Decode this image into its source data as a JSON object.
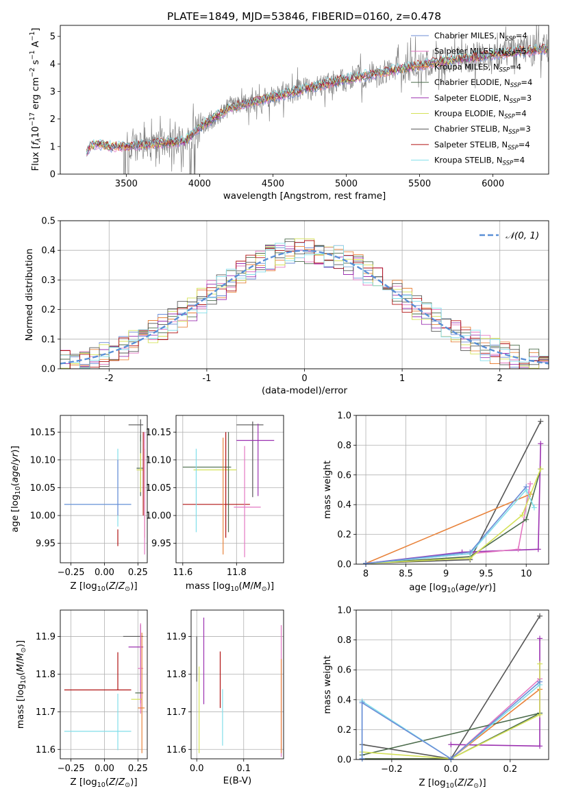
{
  "title": "PLATE=1849, MJD=53846, FIBERID=0160, z=0.478",
  "colors": {
    "Chabrier MILES": "#6b8bd6",
    "Salpeter MILES": "#e377c2",
    "Kroupa MILES": "#e8823a",
    "Chabrier ELODIE": "#4b6b4b",
    "Salpeter ELODIE": "#9b30b0",
    "Kroupa ELODIE": "#d4e157",
    "Chabrier STELIB": "#555555",
    "Salpeter STELIB": "#b01010",
    "Kroupa STELIB": "#80deea",
    "gauss": "#5a8fd6",
    "data": "#808080"
  },
  "legend_entries": [
    {
      "key": "Chabrier MILES",
      "pre": "Chabrier MILES, N",
      "n": "4"
    },
    {
      "key": "Salpeter MILES",
      "pre": "Salpeter MILES, N",
      "n": "5"
    },
    {
      "key": "Kroupa MILES",
      "pre": "Kroupa MILES, N",
      "n": "4"
    },
    {
      "key": "Chabrier ELODIE",
      "pre": "Chabrier ELODIE, N",
      "n": "4"
    },
    {
      "key": "Salpeter ELODIE",
      "pre": "Salpeter ELODIE, N",
      "n": "3"
    },
    {
      "key": "Kroupa ELODIE",
      "pre": "Kroupa ELODIE, N",
      "n": "4"
    },
    {
      "key": "Chabrier STELIB",
      "pre": "Chabrier STELIB, N",
      "n": "3"
    },
    {
      "key": "Salpeter STELIB",
      "pre": "Salpeter STELIB, N",
      "n": "4"
    },
    {
      "key": "Kroupa STELIB",
      "pre": "Kroupa STELIB, N",
      "n": "4"
    }
  ],
  "chart_data": [
    {
      "id": "spectrum",
      "type": "line",
      "xlabel": "wavelength [Angstrom, rest frame]",
      "ylabel": "Flux [f_λ 10^-17 erg cm^-2 s^-1 A^-1]",
      "xlim": [
        3050,
        6380
      ],
      "ylim": [
        0,
        5.4
      ],
      "xticks": [
        3500,
        4000,
        4500,
        5000,
        5500,
        6000
      ],
      "yticks": [
        0,
        1,
        2,
        3,
        4,
        5
      ],
      "continuum": {
        "x": [
          3230,
          3260,
          3300,
          3400,
          3500,
          3700,
          3900,
          4000,
          4200,
          4500,
          4800,
          5000,
          5300,
          5600,
          6000,
          6380
        ],
        "y": [
          0.8,
          1.05,
          1.1,
          1.0,
          1.0,
          1.1,
          1.2,
          1.7,
          2.4,
          2.8,
          3.2,
          3.45,
          3.75,
          4.05,
          4.35,
          4.55
        ]
      },
      "grid": false,
      "legend": "upper right"
    },
    {
      "id": "residual-hist",
      "type": "line",
      "xlabel": "(data-model)/error",
      "ylabel": "Normed distribution",
      "xlim": [
        -2.5,
        2.5
      ],
      "ylim": [
        0,
        0.5
      ],
      "xticks": [
        -2,
        -1,
        0,
        1,
        2
      ],
      "yticks": [
        0.0,
        0.1,
        0.2,
        0.3,
        0.4,
        0.5
      ],
      "gauss_label": "𝒩(0, 1)",
      "grid": true,
      "legend": "upper right"
    },
    {
      "id": "age-vs-Z",
      "type": "scatter",
      "xlabel": "Z [log10(Z/Z⊙)]",
      "ylabel": "age [log10(age/yr)]",
      "xlim": [
        -0.33,
        0.32
      ],
      "ylim": [
        9.915,
        10.18
      ],
      "xticks": [
        -0.25,
        0.0,
        0.25
      ],
      "xticklabels": [
        "−0.25",
        "0.00",
        "0.25"
      ],
      "yticks": [
        9.95,
        10.0,
        10.05,
        10.1,
        10.15
      ],
      "yticklabels": [
        "9.95",
        "10.00",
        "10.05",
        "10.10",
        "10.15"
      ],
      "points": [
        {
          "key": "Chabrier STELIB",
          "x": 0.27,
          "y": 10.163,
          "xerr": [
            0.09,
            0.02
          ],
          "yerr": [
            0.03,
            0.01
          ]
        },
        {
          "key": "Chabrier ELODIE",
          "x": 0.27,
          "y": 10.085,
          "xerr": [
            0.03,
            0.02
          ],
          "yerr": [
            0.05,
            0.06
          ]
        },
        {
          "key": "Kroupa ELODIE",
          "x": 0.27,
          "y": 10.082,
          "xerr": [
            0.03,
            0.02
          ],
          "yerr": [
            0.04,
            0.03
          ]
        },
        {
          "key": "Salpeter STELIB",
          "x": 0.29,
          "y": 10.05,
          "xerr": [
            0.0,
            0.0
          ],
          "yerr": [
            0.05,
            0.1
          ]
        },
        {
          "key": "Kroupa MILES",
          "x": 0.3,
          "y": 10.02,
          "xerr": [
            0.0,
            0.0
          ],
          "yerr": [
            0.06,
            0.1
          ]
        },
        {
          "key": "Salpeter MILES",
          "x": 0.3,
          "y": 10.02,
          "xerr": [
            0.0,
            0.0
          ],
          "yerr": [
            0.09,
            0.13
          ]
        },
        {
          "key": "Kroupa STELIB",
          "x": 0.1,
          "y": 10.02,
          "xerr": [
            0.4,
            0.1
          ],
          "yerr": [
            0.04,
            0.1
          ]
        },
        {
          "key": "Salpeter STELIB",
          "x": 0.1,
          "y": 9.96,
          "xerr": [
            0.0,
            0.0
          ],
          "yerr": [
            0.015,
            0.015
          ]
        },
        {
          "key": "Chabrier MILES",
          "x": 0.1,
          "y": 10.02,
          "xerr": [
            0.4,
            0.1
          ],
          "yerr": [
            0.02,
            0.08
          ]
        }
      ],
      "grid": true
    },
    {
      "id": "age-vs-mass",
      "type": "scatter",
      "xlabel": "mass [log10(M/M⊙)]",
      "ylabel": "",
      "xlim": [
        11.575,
        11.975
      ],
      "ylim": [
        9.915,
        10.18
      ],
      "xticks": [
        11.6,
        11.8
      ],
      "xticklabels": [
        "11.6",
        "11.8"
      ],
      "yticks": [
        9.95,
        10.0,
        10.05,
        10.1,
        10.15
      ],
      "yticklabels": [
        "9.95",
        "10.00",
        "10.05",
        "10.10",
        "10.15"
      ],
      "points": [
        {
          "key": "Chabrier STELIB",
          "x": 11.86,
          "y": 10.163,
          "xerr": [
            0.06,
            0.04
          ],
          "yerr": [
            0.13,
            0.006
          ]
        },
        {
          "key": "Salpeter ELODIE",
          "x": 11.88,
          "y": 10.135,
          "xerr": [
            0.08,
            0.06
          ],
          "yerr": [
            0.1,
            0.03
          ]
        },
        {
          "key": "Chabrier ELODIE",
          "x": 11.7,
          "y": 10.087,
          "xerr": [
            0.1,
            0.08
          ],
          "yerr": [
            0.0,
            0.0
          ]
        },
        {
          "key": "Kroupa ELODIE",
          "x": 11.72,
          "y": 10.082,
          "xerr": [
            0.08,
            0.08
          ],
          "yerr": [
            0.0,
            0.0
          ]
        },
        {
          "key": "Salpeter STELIB",
          "x": 11.76,
          "y": 10.02,
          "xerr": [
            0.16,
            0.09
          ],
          "yerr": [
            0.06,
            0.13
          ]
        },
        {
          "key": "Kroupa MILES",
          "x": 11.75,
          "y": 10.02,
          "xerr": [
            0.0,
            0.0
          ],
          "yerr": [
            0.09,
            0.12
          ]
        },
        {
          "key": "Salpeter MILES",
          "x": 11.83,
          "y": 10.015,
          "xerr": [
            0.04,
            0.06
          ],
          "yerr": [
            0.09,
            0.11
          ]
        },
        {
          "key": "Kroupa STELIB",
          "x": 11.65,
          "y": 10.02,
          "xerr": [
            0.0,
            0.0
          ],
          "yerr": [
            0.05,
            0.1
          ]
        },
        {
          "key": "Chabrier ELODIE",
          "x": 11.77,
          "y": 10.02,
          "xerr": [
            0.0,
            0.0
          ],
          "yerr": [
            0.05,
            0.13
          ]
        }
      ],
      "grid": true
    },
    {
      "id": "weight-vs-age",
      "type": "line",
      "xlabel": "age [log10(age/yr)]",
      "ylabel": "mass weight",
      "xlim": [
        7.88,
        10.28
      ],
      "ylim": [
        0,
        1
      ],
      "xticks": [
        8.0,
        8.5,
        9.0,
        9.5,
        10.0
      ],
      "yticks": [
        0.0,
        0.2,
        0.4,
        0.6,
        0.8,
        1.0
      ],
      "series": [
        {
          "key": "Chabrier STELIB",
          "x": [
            8.0,
            9.3,
            10.18
          ],
          "y": [
            0.005,
            0.03,
            0.96
          ]
        },
        {
          "key": "Salpeter ELODIE",
          "x": [
            8.0,
            9.2,
            10.15,
            10.18
          ],
          "y": [
            0.005,
            0.08,
            0.1,
            0.81
          ]
        },
        {
          "key": "Salpeter MILES",
          "x": [
            8.0,
            9.9,
            10.05
          ],
          "y": [
            0.005,
            0.1,
            0.54
          ]
        },
        {
          "key": "Kroupa MILES",
          "x": [
            8.0,
            10.05
          ],
          "y": [
            0.005,
            0.47
          ]
        },
        {
          "key": "Chabrier ELODIE",
          "x": [
            8.0,
            9.3,
            10.0,
            10.18
          ],
          "y": [
            0.005,
            0.05,
            0.3,
            0.64
          ]
        },
        {
          "key": "Kroupa ELODIE",
          "x": [
            8.0,
            9.3,
            9.95,
            10.18
          ],
          "y": [
            0.005,
            0.04,
            0.33,
            0.64
          ]
        },
        {
          "key": "Kroupa STELIB",
          "x": [
            8.0,
            9.3,
            10.0,
            10.1
          ],
          "y": [
            0.005,
            0.07,
            0.5,
            0.38
          ]
        },
        {
          "key": "Chabrier MILES",
          "x": [
            8.0,
            9.3,
            10.0
          ],
          "y": [
            0.005,
            0.08,
            0.52
          ]
        }
      ],
      "grid": true
    },
    {
      "id": "mass-vs-Z",
      "type": "scatter",
      "xlabel": "Z [log10(Z/Z⊙)]",
      "ylabel": "mass [log10(M/M⊙)]",
      "xlim": [
        -0.33,
        0.32
      ],
      "ylim": [
        11.575,
        11.97
      ],
      "xticks": [
        -0.25,
        0.0,
        0.25
      ],
      "xticklabels": [
        "−0.25",
        "0.00",
        "0.25"
      ],
      "yticks": [
        11.6,
        11.7,
        11.8,
        11.9
      ],
      "yticklabels": [
        "11.6",
        "11.7",
        "11.8",
        "11.9"
      ],
      "points": [
        {
          "key": "Chabrier STELIB",
          "x": 0.27,
          "y": 11.9,
          "xerr": [
            0.13,
            0.02
          ],
          "yerr": [
            0.17,
            0.03
          ]
        },
        {
          "key": "Salpeter ELODIE",
          "x": 0.27,
          "y": 11.872,
          "xerr": [
            0.09,
            0.02
          ],
          "yerr": [
            0.15,
            0.06
          ]
        },
        {
          "key": "Salpeter MILES",
          "x": 0.27,
          "y": 11.815,
          "xerr": [
            0.02,
            0.02
          ],
          "yerr": [
            0.12,
            0.12
          ]
        },
        {
          "key": "Chabrier ELODIE",
          "x": 0.27,
          "y": 11.75,
          "xerr": [
            0.04,
            0.02
          ],
          "yerr": [
            0.0,
            0.0
          ]
        },
        {
          "key": "Kroupa ELODIE",
          "x": 0.26,
          "y": 11.733,
          "xerr": [
            0.06,
            0.02
          ],
          "yerr": [
            0.0,
            0.0
          ]
        },
        {
          "key": "Kroupa MILES",
          "x": 0.28,
          "y": 11.71,
          "xerr": [
            0.03,
            0.02
          ],
          "yerr": [
            0.12,
            0.2
          ]
        },
        {
          "key": "Salpeter STELIB",
          "x": 0.1,
          "y": 11.758,
          "xerr": [
            0.4,
            0.1
          ],
          "yerr": [
            0.0,
            0.1
          ]
        },
        {
          "key": "Kroupa STELIB",
          "x": 0.1,
          "y": 11.648,
          "xerr": [
            0.4,
            0.1
          ],
          "yerr": [
            0.05,
            0.1
          ]
        }
      ],
      "grid": true
    },
    {
      "id": "mass-vs-EBV",
      "type": "scatter",
      "xlabel": "E(B-V)",
      "ylabel": "",
      "xlim": [
        -0.012,
        0.185
      ],
      "ylim": [
        11.575,
        11.97
      ],
      "xticks": [
        0.0,
        0.1
      ],
      "xticklabels": [
        "0.0",
        "0.1"
      ],
      "yticks": [
        11.6,
        11.7,
        11.8,
        11.9
      ],
      "yticklabels": [
        "11.6",
        "11.7",
        "11.8",
        "11.9"
      ],
      "points": [
        {
          "key": "Salpeter ELODIE",
          "x": 0.015,
          "y": 11.86,
          "xerr": [
            0.0,
            0.0
          ],
          "yerr": [
            0.14,
            0.09
          ]
        },
        {
          "key": "Chabrier STELIB",
          "x": 0.0,
          "y": 11.85,
          "xerr": [
            0.0,
            0.0
          ],
          "yerr": [
            0.07,
            0.05
          ]
        },
        {
          "key": "Kroupa ELODIE",
          "x": 0.005,
          "y": 11.72,
          "xerr": [
            0.0,
            0.0
          ],
          "yerr": [
            0.13,
            0.1
          ]
        },
        {
          "key": "Salpeter STELIB",
          "x": 0.05,
          "y": 11.78,
          "xerr": [
            0.0,
            0.0
          ],
          "yerr": [
            0.07,
            0.08
          ]
        },
        {
          "key": "Kroupa STELIB",
          "x": 0.055,
          "y": 11.7,
          "xerr": [
            0.0,
            0.0
          ],
          "yerr": [
            0.09,
            0.06
          ]
        },
        {
          "key": "Salpeter MILES",
          "x": 0.18,
          "y": 11.78,
          "xerr": [
            0.0,
            0.0
          ],
          "yerr": [
            0.2,
            0.15
          ]
        },
        {
          "key": "Kroupa MILES",
          "x": 0.18,
          "y": 11.72,
          "xerr": [
            0.0,
            0.0
          ],
          "yerr": [
            0.13,
            0.12
          ]
        }
      ],
      "grid": true
    },
    {
      "id": "weight-vs-Z",
      "type": "line",
      "xlabel": "Z [log10(Z/Z⊙)]",
      "ylabel": "mass weight",
      "xlim": [
        -0.32,
        0.33
      ],
      "ylim": [
        0,
        1
      ],
      "xticks": [
        -0.2,
        0.0,
        0.2
      ],
      "xticklabels": [
        "−0.2",
        "0.0",
        "0.2"
      ],
      "yticks": [
        0.0,
        0.2,
        0.4,
        0.6,
        0.8,
        1.0
      ],
      "series": [
        {
          "key": "Chabrier STELIB",
          "x": [
            -0.3,
            0.0,
            0.3
          ],
          "y": [
            0.1,
            0.005,
            0.96
          ]
        },
        {
          "key": "Salpeter ELODIE",
          "x": [
            0.0,
            0.3,
            0.3
          ],
          "y": [
            0.1,
            0.09,
            0.81
          ]
        },
        {
          "key": "Salpeter MILES",
          "x": [
            0.0,
            0.3
          ],
          "y": [
            0.005,
            0.54
          ]
        },
        {
          "key": "Kroupa MILES",
          "x": [
            -0.3,
            0.0,
            0.3
          ],
          "y": [
            0.005,
            0.005,
            0.47
          ]
        },
        {
          "key": "Chabrier ELODIE",
          "x": [
            -0.3,
            0.0,
            0.3
          ],
          "y": [
            0.005,
            0.005,
            0.31
          ]
        },
        {
          "key": "Chabrier ELODIE",
          "x": [
            -0.3,
            0.3
          ],
          "y": [
            0.03,
            0.31
          ]
        },
        {
          "key": "Kroupa ELODIE",
          "x": [
            -0.3,
            0.0,
            0.3,
            0.3
          ],
          "y": [
            0.05,
            0.005,
            0.3,
            0.64
          ]
        },
        {
          "key": "Kroupa STELIB",
          "x": [
            -0.3,
            -0.3,
            0.0,
            0.3
          ],
          "y": [
            0.005,
            0.39,
            0.005,
            0.5
          ]
        },
        {
          "key": "Chabrier MILES",
          "x": [
            -0.3,
            -0.3,
            0.0,
            0.3
          ],
          "y": [
            0.005,
            0.38,
            0.005,
            0.52
          ]
        }
      ],
      "grid": true
    }
  ]
}
